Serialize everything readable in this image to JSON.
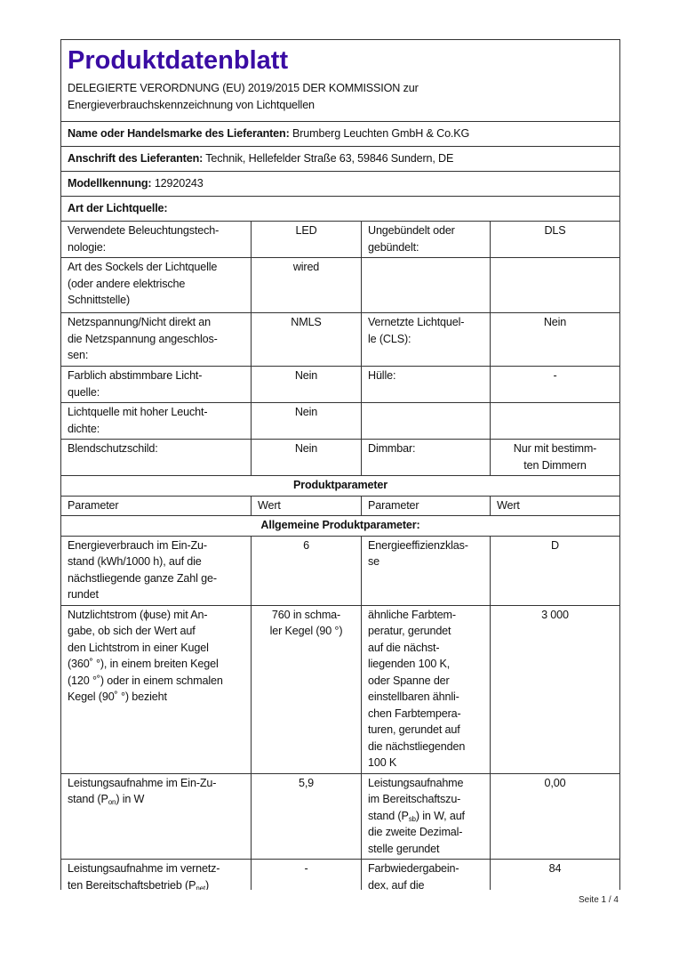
{
  "title": "Produktdatenblatt",
  "subtitle": "DELEGIERTE VERORDNUNG (EU) 2019/2015 DER KOMMISSION zur\nEnergieverbrauchskennzeichnung von Lichtquellen",
  "supplier": {
    "label": "Name oder Handelsmarke des Lieferanten:",
    "value": "Brumberg Leuchten GmbH & Co.KG"
  },
  "address": {
    "label": "Anschrift des Lieferanten:",
    "value": "Technik, Hellefelder Straße 63, 59846 Sundern, DE"
  },
  "model": {
    "label": "Modellkennung:",
    "value": "12920243"
  },
  "type_heading": "Art der Lichtquelle:",
  "type_rows": [
    {
      "p1": "Verwendete Beleuchtungstech-\nnologie:",
      "v1": "LED",
      "p2": "Ungebündelt oder\ngebündelt:",
      "v2": "DLS"
    },
    {
      "p1": "Art des Sockels der Lichtquelle\n(oder andere elektrische\nSchnittstelle)",
      "v1": "wired",
      "p2": "",
      "v2": ""
    },
    {
      "p1": "Netzspannung/Nicht direkt an\ndie Netzspannung angeschlos-\nsen:",
      "v1": "NMLS",
      "p2": "Vernetzte Lichtquel-\nle (CLS):",
      "v2": "Nein"
    },
    {
      "p1": "Farblich abstimmbare Licht-\nquelle:",
      "v1": "Nein",
      "p2": "Hülle:",
      "v2": "-"
    },
    {
      "p1": "Lichtquelle mit hoher Leucht-\ndichte:",
      "v1": "Nein",
      "p2": "",
      "v2": ""
    },
    {
      "p1": "Blendschutzschild:",
      "v1": "Nein",
      "p2": "Dimmbar:",
      "v2": "Nur mit bestimm-\nten Dimmern"
    }
  ],
  "params_heading": "Produktparameter",
  "params_header": {
    "p1": "Parameter",
    "v1": "Wert",
    "p2": "Parameter",
    "v2": "Wert"
  },
  "general_heading": "Allgemeine Produktparameter:",
  "general_rows": [
    {
      "p1": "Energieverbrauch im Ein-Zu-\nstand (kWh/1000 h), auf die\nnächstliegende ganze Zahl ge-\nrundet",
      "v1": "6",
      "p2": "Energieeffizienzklas-\nse",
      "v2": "D"
    },
    {
      "p1": "Nutzlichtstrom (ϕuse) mit An-\ngabe, ob sich der Wert auf\nden Lichtstrom in einer Kugel\n(360˚ °), in einem breiten Kegel\n(120 °˚) oder in einem schmalen\nKegel (90˚ °) bezieht",
      "v1": "760 in schma-\nler Kegel (90 °)",
      "p2": "ähnliche Farbtem-\nperatur, gerundet\nauf die nächst-\nliegenden 100 K,\noder Spanne der\neinstellbaren ähnli-\nchen Farbtempera-\nturen, gerundet auf\ndie nächstliegenden\n100 K",
      "v2": "3 000"
    },
    {
      "p1a": "Leistungsaufnahme im Ein-Zu-\nstand (P",
      "p1sub": "on",
      "p1b": ") in W",
      "v1": "5,9",
      "p2a": "Leistungsaufnahme\nim Bereitschaftszu-\nstand (P",
      "p2sub": "sb",
      "p2b": ") in W, auf\ndie zweite Dezimal-\nstelle gerundet",
      "v2": "0,00"
    },
    {
      "p1a": "Leistungsaufnahme im vernetz-\nten Bereitschaftsbetrieb (P",
      "p1sub": "net",
      "p1b": ")",
      "v1": "-",
      "p2": "Farbwiedergabein-\ndex, auf die",
      "v2": "84"
    }
  ],
  "footer": "Seite 1 / 4",
  "colors": {
    "title": "#3a0ca3",
    "border": "#333333"
  }
}
